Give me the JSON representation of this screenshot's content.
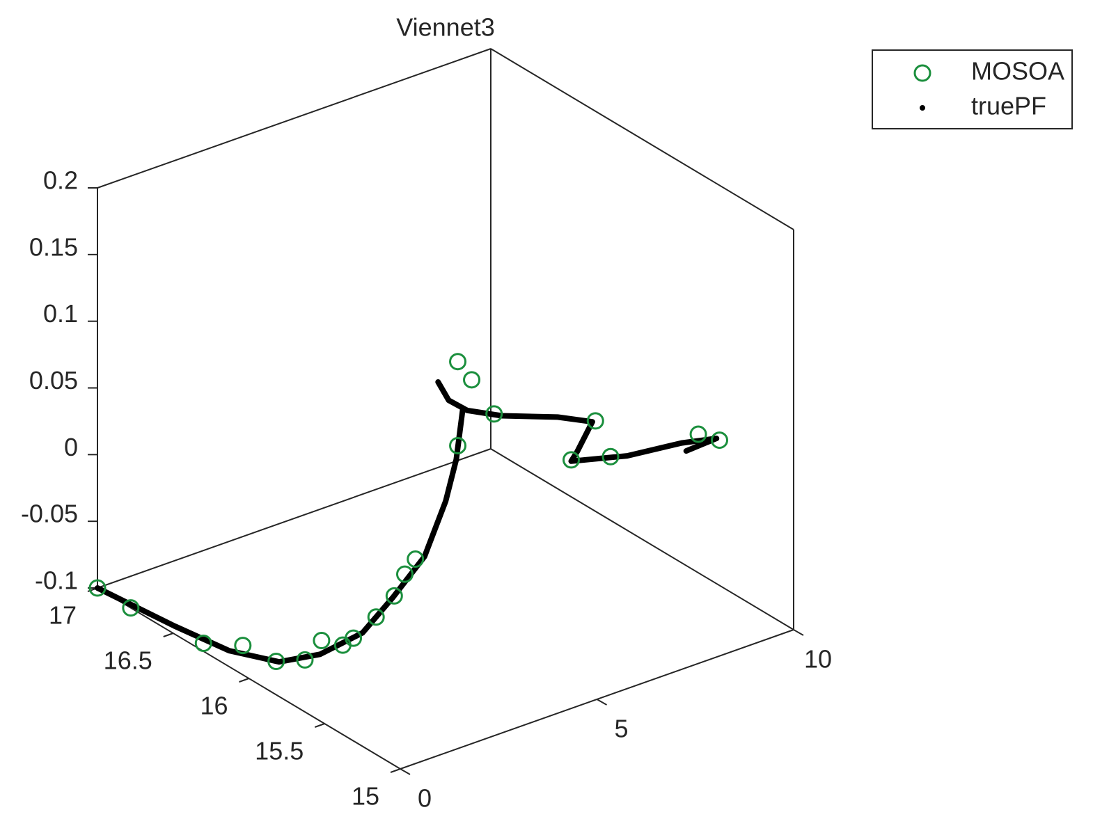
{
  "chart_data": {
    "type": "scatter3d",
    "title": "Viennet3",
    "series": [
      {
        "name": "MOSOA",
        "color": "#1b8f3d",
        "marker": "circle",
        "x": [
          0,
          0,
          0,
          0,
          0,
          0,
          0,
          0,
          0,
          0,
          0,
          0.5,
          1,
          2,
          2,
          2.2,
          3,
          6,
          5,
          6,
          8,
          8.5
        ],
        "y": [
          17,
          16.78,
          16.3,
          16.04,
          15.82,
          15.63,
          15.52,
          15.38,
          15.31,
          15.16,
          15.04,
          15.1,
          15.16,
          15.14,
          15.14,
          15.1,
          15.16,
          15.27,
          15.17,
          15.17,
          15.11,
          15.1
        ],
        "z": [
          -0.1,
          -0.1,
          -0.094,
          -0.078,
          -0.075,
          -0.061,
          -0.039,
          -0.033,
          -0.023,
          0.003,
          0.027,
          0.034,
          0.036,
          0.112,
          0.175,
          0.162,
          0.124,
          0.08,
          0.068,
          0.06,
          0.06,
          0.051
        ]
      },
      {
        "name": "truePF",
        "color": "#000000",
        "marker": "dot",
        "x": [
          0,
          0,
          0,
          0,
          0,
          0,
          0,
          1,
          1.5,
          2,
          2.2,
          null,
          1,
          1.5,
          2.2,
          3,
          4.5,
          5.5,
          5,
          5,
          6.5,
          8,
          8.5,
          8
        ],
        "y": [
          17,
          16.49,
          16.13,
          15.8,
          15.53,
          15.25,
          15.05,
          15.1,
          15.09,
          15.15,
          15.16,
          null,
          15.01,
          15.07,
          15.13,
          15.11,
          15.13,
          15.16,
          15.13,
          15.17,
          15.19,
          15.22,
          15.12,
          15.19
        ],
        "z": [
          -0.1,
          -0.094,
          -0.088,
          -0.074,
          -0.05,
          -0.015,
          0.025,
          0.042,
          0.079,
          0.101,
          0.135,
          null,
          0.179,
          0.156,
          0.137,
          0.126,
          0.108,
          0.092,
          0.077,
          0.067,
          0.054,
          0.046,
          0.051,
          0.042
        ]
      }
    ],
    "xlim": [
      0,
      10
    ],
    "ylim": [
      15,
      17
    ],
    "zlim": [
      -0.1,
      0.2
    ],
    "xticks": [
      0,
      5,
      10
    ],
    "yticks": [
      15,
      15.5,
      16,
      16.5,
      17
    ],
    "zticks": [
      -0.1,
      -0.05,
      0,
      0.05,
      0.1,
      0.15,
      0.2
    ],
    "legend": "outside-top-right"
  }
}
